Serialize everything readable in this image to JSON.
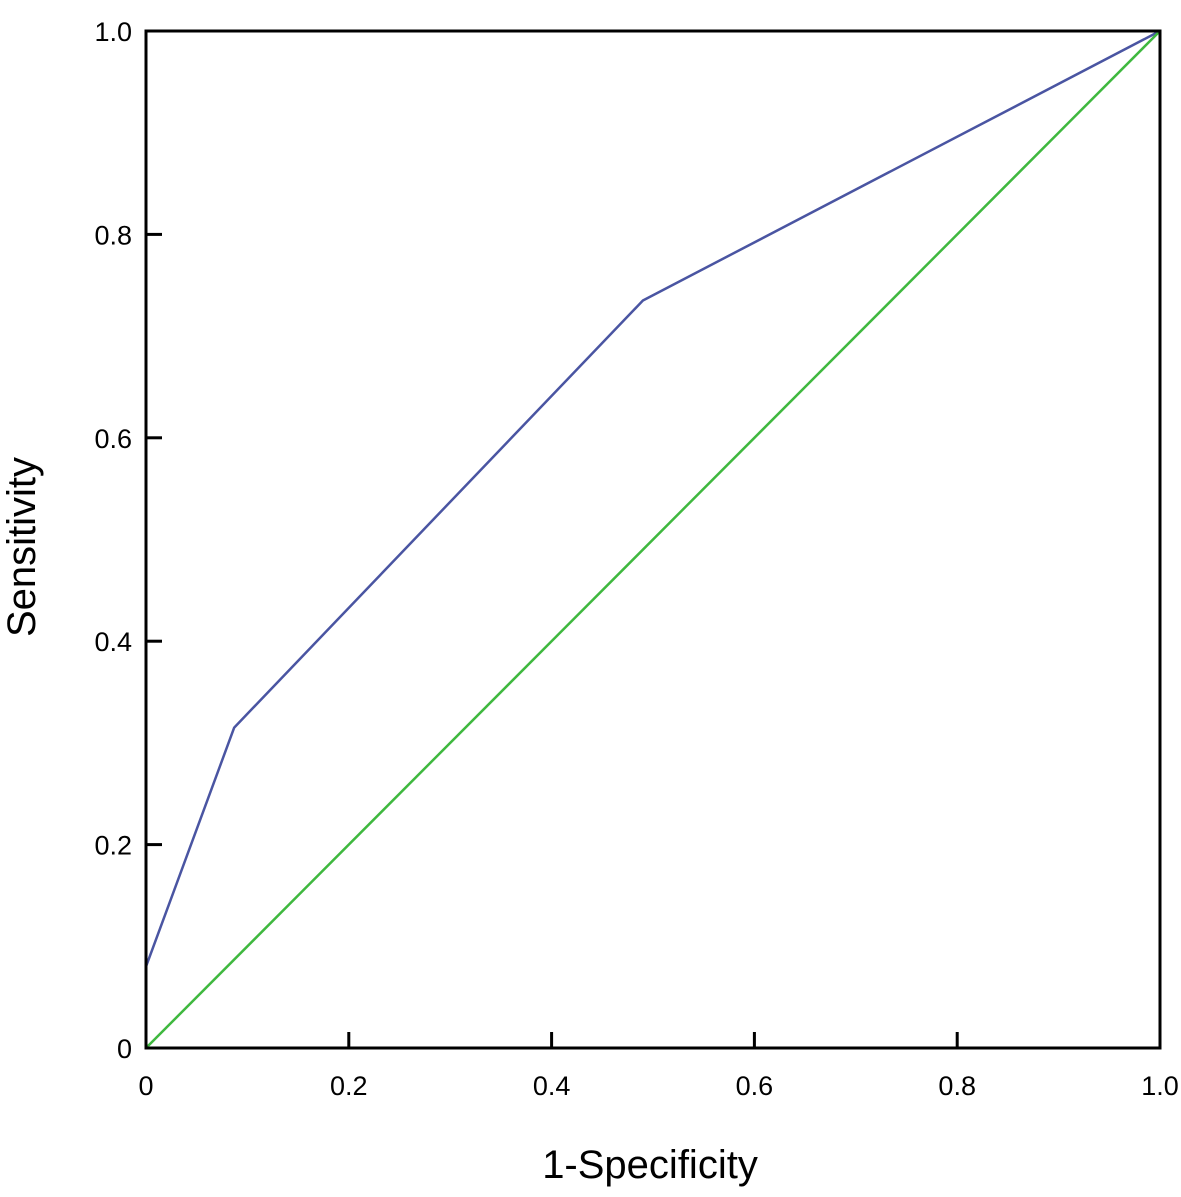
{
  "chart_data": {
    "type": "line",
    "title": "",
    "xlabel": "1-Specificity",
    "ylabel": "Sensitivity",
    "xlim": [
      0,
      1
    ],
    "ylim": [
      0,
      1
    ],
    "grid": false,
    "x_ticks": [
      {
        "value": 0,
        "label": "0"
      },
      {
        "value": 0.2,
        "label": "0.2"
      },
      {
        "value": 0.4,
        "label": "0.4"
      },
      {
        "value": 0.6,
        "label": "0.6"
      },
      {
        "value": 0.8,
        "label": "0.8"
      },
      {
        "value": 1,
        "label": "1.0"
      }
    ],
    "y_ticks": [
      {
        "value": 0,
        "label": "0"
      },
      {
        "value": 0.2,
        "label": "0.2"
      },
      {
        "value": 0.4,
        "label": "0.4"
      },
      {
        "value": 0.6,
        "label": "0.6"
      },
      {
        "value": 0.8,
        "label": "0.8"
      },
      {
        "value": 1,
        "label": "1.0"
      }
    ],
    "series": [
      {
        "color": "#4a55a2",
        "points": [
          [
            0,
            0.08
          ],
          [
            0.087,
            0.315
          ],
          [
            0.49,
            0.735
          ],
          [
            1,
            1
          ]
        ]
      },
      {
        "color": "#3fb83f",
        "points": [
          [
            0,
            0
          ],
          [
            1,
            1
          ]
        ]
      }
    ]
  }
}
